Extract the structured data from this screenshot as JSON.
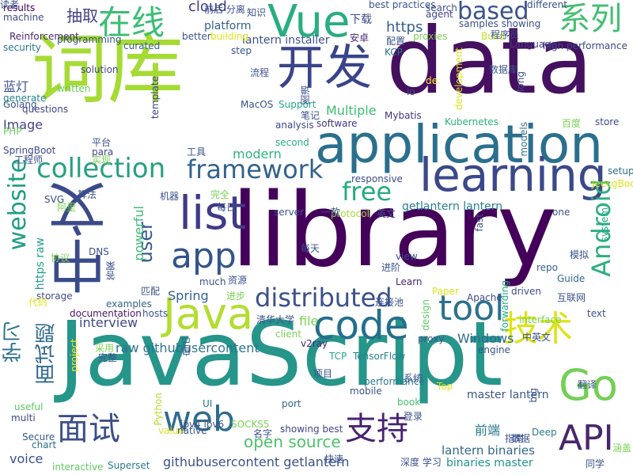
{
  "words": [
    {
      "text": "library",
      "color": "#44015a"
    },
    {
      "text": "data",
      "color": "#45105f"
    },
    {
      "text": "JavaScript",
      "color": "#26958a"
    },
    {
      "text": "词库",
      "color": "#a6db35"
    },
    {
      "text": "application",
      "color": "#2a6f8e"
    },
    {
      "text": "中文",
      "color": "#3b4b89"
    },
    {
      "text": "开发",
      "color": "#3a448a"
    },
    {
      "text": "learning",
      "color": "#3b4889"
    },
    {
      "text": "Vue",
      "color": "#28ae80"
    },
    {
      "text": "Java",
      "color": "#b3dd2f"
    },
    {
      "text": "list",
      "color": "#3f3a87"
    },
    {
      "text": "code",
      "color": "#236f8d"
    },
    {
      "text": "Go",
      "color": "#72d055"
    },
    {
      "text": "web",
      "color": "#2f6c8e"
    },
    {
      "text": "API",
      "color": "#48276d"
    },
    {
      "text": "技术",
      "color": "#dde318"
    },
    {
      "text": "app",
      "color": "#33548c"
    },
    {
      "text": "支持",
      "color": "#482374"
    },
    {
      "text": "面试",
      "color": "#3c4f8a"
    },
    {
      "text": "tool",
      "color": "#2c718e"
    },
    {
      "text": "在线",
      "color": "#3abe74"
    },
    {
      "text": "系列",
      "color": "#43bf71"
    },
    {
      "text": "collection",
      "color": "#27a082"
    },
    {
      "text": "framework",
      "color": "#33628d"
    },
    {
      "text": "distributed",
      "color": "#3b518b"
    },
    {
      "text": "website",
      "color": "#1f9d87"
    },
    {
      "text": "Android",
      "color": "#2ab07f"
    },
    {
      "text": "free",
      "color": "#25ab81"
    },
    {
      "text": "based",
      "color": "#3a528b"
    },
    {
      "text": "open source",
      "color": "#4cc26c"
    },
    {
      "text": "学习",
      "color": "#2c728e"
    },
    {
      "text": "面试题",
      "color": "#306a8e"
    },
    {
      "text": "user",
      "color": "#37598c"
    },
    {
      "text": "https",
      "color": "#345f8d"
    },
    {
      "text": "抽取",
      "color": "#424086"
    },
    {
      "text": "cloud",
      "color": "#433e85"
    },
    {
      "text": "下载",
      "color": "#3e4989"
    },
    {
      "text": "modern",
      "color": "#2fb47c"
    },
    {
      "text": "powerful",
      "color": "#3bbb75"
    },
    {
      "text": "interview",
      "color": "#3e4a89"
    },
    {
      "text": "getlantern lantern",
      "color": "#27808e"
    },
    {
      "text": "lantern binaries",
      "color": "#31678e"
    },
    {
      "text": "binaries master",
      "color": "#1f948c"
    },
    {
      "text": "githubusercontent getlantern",
      "color": "#3b528b"
    },
    {
      "text": "raw githubusercontent",
      "color": "#2b758e"
    },
    {
      "text": "master lantern",
      "color": "#39578c"
    },
    {
      "text": "Multiple",
      "color": "#3dbc74"
    },
    {
      "text": "前端",
      "color": "#2a788e"
    },
    {
      "text": "Image",
      "color": "#414487"
    },
    {
      "text": "蓝灯",
      "color": "#3b528b"
    },
    {
      "text": "Spring",
      "color": "#33628d"
    },
    {
      "text": "file",
      "color": "#7ad151"
    },
    {
      "text": "https raw",
      "color": "#1fa088"
    },
    {
      "text": "lantern installer",
      "color": "#3c508b"
    },
    {
      "text": "Windows",
      "color": "#2f6b8e"
    },
    {
      "text": "platform",
      "color": "#34608d"
    },
    {
      "text": "best practices",
      "color": "#39558c"
    },
    {
      "text": "samples showing",
      "color": "#3b528b"
    },
    {
      "text": "high performance",
      "color": "#3f4788"
    },
    {
      "text": "forwarding",
      "color": "#22a785"
    },
    {
      "text": "storage",
      "color": "#3e4a89"
    },
    {
      "text": "repo",
      "color": "#365c8d"
    },
    {
      "text": "text",
      "color": "#3c4f8a"
    },
    {
      "text": "examples",
      "color": "#33638d"
    },
    {
      "text": "documentation",
      "color": "#48186a"
    },
    {
      "text": "Support",
      "color": "#22a884"
    },
    {
      "text": "Mybatis",
      "color": "#46327e"
    },
    {
      "text": "software",
      "color": "#453781"
    },
    {
      "text": "Kubernetes",
      "color": "#2db27d"
    },
    {
      "text": "analysis",
      "color": "#3e4c8a"
    },
    {
      "text": "second",
      "color": "#27ad81"
    },
    {
      "text": "responsive",
      "color": "#3d4e8a"
    },
    {
      "text": "server",
      "color": "#3b528b"
    },
    {
      "text": "protocol",
      "color": "#a5db36"
    },
    {
      "text": "TensorFlow",
      "color": "#26828e"
    },
    {
      "text": "TCP",
      "color": "#22a884"
    },
    {
      "text": "v2ray",
      "color": "#482878"
    },
    {
      "text": "port",
      "color": "#31688e"
    },
    {
      "text": "mobile",
      "color": "#3b528b"
    },
    {
      "text": "book",
      "color": "#4ac16d"
    },
    {
      "text": "showing best",
      "color": "#414487"
    },
    {
      "text": "SOCKS5",
      "color": "#7ad151"
    },
    {
      "text": "ipv4 ipv6",
      "color": "#3b528b"
    },
    {
      "text": "UI",
      "color": "#2a788e"
    },
    {
      "text": "Python",
      "color": "#b5de2b"
    },
    {
      "text": "Superset",
      "color": "#2a788e"
    },
    {
      "text": "interactive",
      "color": "#5ec962"
    },
    {
      "text": "Secure",
      "color": "#39568c"
    },
    {
      "text": "chart",
      "color": "#2d708e"
    },
    {
      "text": "multi",
      "color": "#3f4889"
    },
    {
      "text": "useful",
      "color": "#5ec962"
    },
    {
      "text": "voice",
      "color": "#3b528b"
    },
    {
      "text": "project",
      "color": "#fde725"
    },
    {
      "text": "questions",
      "color": "#414487"
    },
    {
      "text": "PHP",
      "color": "#6ccd5a"
    },
    {
      "text": "Golang",
      "color": "#3b528b"
    },
    {
      "text": "generate",
      "color": "#25848e"
    },
    {
      "text": "SpringBoot",
      "color": "#3e4989"
    },
    {
      "text": "written",
      "color": "#6ccd5a"
    },
    {
      "text": "solution",
      "color": "#404688"
    },
    {
      "text": "curated",
      "color": "#365c8d"
    },
    {
      "text": "Reinforcement",
      "color": "#482878"
    },
    {
      "text": "security",
      "color": "#2a788e"
    },
    {
      "text": "results",
      "color": "#44015a"
    },
    {
      "text": "machine",
      "color": "#3e4a89"
    },
    {
      "text": "step",
      "color": "#39568c"
    },
    {
      "text": "Language",
      "color": "#453781"
    },
    {
      "text": "Build",
      "color": "#bddf26"
    },
    {
      "text": "models",
      "color": "#2c728e"
    },
    {
      "text": "driven",
      "color": "#3d4e8a"
    },
    {
      "text": "Guide",
      "color": "#2e6e8e"
    },
    {
      "text": "JeecgBoot",
      "color": "#dde318"
    },
    {
      "text": "setup",
      "color": "#2c728e"
    },
    {
      "text": "one",
      "color": "#3b528b"
    },
    {
      "text": "system",
      "color": "#22a884"
    },
    {
      "text": "store",
      "color": "#3e4c8a"
    },
    {
      "text": "different",
      "color": "#3b528b"
    },
    {
      "text": "search",
      "color": "#3b528b"
    },
    {
      "text": "agent",
      "color": "#414487"
    },
    {
      "text": "proxies",
      "color": "#7ad151"
    },
    {
      "text": "KCP",
      "color": "#2a788e"
    },
    {
      "text": "de",
      "color": "#fde725"
    },
    {
      "text": "io",
      "color": "#3e4a89"
    },
    {
      "text": "view",
      "color": "#3b528b"
    },
    {
      "text": "Learn",
      "color": "#482878"
    },
    {
      "text": "Paper",
      "color": "#dde318"
    },
    {
      "text": "Apache",
      "color": "#3e4a89"
    },
    {
      "text": "design",
      "color": "#5ec962"
    },
    {
      "text": "proxy",
      "color": "#3b528b"
    },
    {
      "text": "engine",
      "color": "#3b528b"
    },
    {
      "text": "performance",
      "color": "#2a788e"
    },
    {
      "text": "Top",
      "color": "#dde318"
    },
    {
      "text": "big",
      "color": "#3b528b"
    },
    {
      "text": "Deep",
      "color": "#2a788e"
    },
    {
      "text": "development",
      "color": "#dde318"
    },
    {
      "text": "long",
      "color": "#3b528b"
    },
    {
      "text": "interface",
      "color": "#7ad151"
    },
    {
      "text": "value",
      "color": "#dde318"
    },
    {
      "text": "native",
      "color": "#3b528b"
    },
    {
      "text": "building",
      "color": "#dde318"
    },
    {
      "text": "MacOS",
      "color": "#3b528b"
    },
    {
      "text": "template",
      "color": "#414487"
    },
    {
      "text": "better",
      "color": "#3b528b"
    },
    {
      "text": "para",
      "color": "#404688"
    },
    {
      "text": "fast",
      "color": "#3b528b"
    },
    {
      "text": "much",
      "color": "#3b528b"
    },
    {
      "text": "SVG",
      "color": "#3b528b"
    },
    {
      "text": "DNS",
      "color": "#3b528b"
    },
    {
      "text": "hosts",
      "color": "#3b528b"
    },
    {
      "text": "client",
      "color": "#7ad151"
    },
    {
      "text": "programming",
      "color": "#3b528b"
    },
    {
      "text": "前后 分离",
      "color": "#3b528b"
    },
    {
      "text": "知识",
      "color": "#3b528b"
    },
    {
      "text": "安卓",
      "color": "#482878"
    },
    {
      "text": "配置",
      "color": "#3b528b"
    },
    {
      "text": "程序员",
      "color": "#3b528b"
    },
    {
      "text": "数据库",
      "color": "#3b528b"
    },
    {
      "text": "百度",
      "color": "#7ad151"
    },
    {
      "text": "流程",
      "color": "#3b528b"
    },
    {
      "text": "图谱",
      "color": "#3b528b"
    },
    {
      "text": "笔记",
      "color": "#3b528b"
    },
    {
      "text": "平台",
      "color": "#3b528b"
    },
    {
      "text": "实现",
      "color": "#7ad151"
    },
    {
      "text": "工具",
      "color": "#3b528b"
    },
    {
      "text": "工程师",
      "color": "#3b528b"
    },
    {
      "text": "算法",
      "color": "#3b528b"
    },
    {
      "text": "阿里",
      "color": "#7ad151"
    },
    {
      "text": "机器",
      "color": "#3b528b"
    },
    {
      "text": "完全",
      "color": "#7ad151"
    },
    {
      "text": "每日",
      "color": "#3b528b"
    },
    {
      "text": "一款",
      "color": "#3b528b"
    },
    {
      "text": "英文",
      "color": "#3b528b"
    },
    {
      "text": "每天",
      "color": "#3b528b"
    },
    {
      "text": "模拟",
      "color": "#3b528b"
    },
    {
      "text": "进阶",
      "color": "#3b528b"
    },
    {
      "text": "协议",
      "color": "#7ad151"
    },
    {
      "text": "答案",
      "color": "#3b528b"
    },
    {
      "text": "资源",
      "color": "#3b528b"
    },
    {
      "text": "进步",
      "color": "#7ad151"
    },
    {
      "text": "匹配",
      "color": "#3b528b"
    },
    {
      "text": "代码",
      "color": "#dde318"
    },
    {
      "text": "连接池",
      "color": "#3b528b"
    },
    {
      "text": "互联网",
      "color": "#3b528b"
    },
    {
      "text": "清华大学",
      "color": "#3b528b"
    },
    {
      "text": "中英文",
      "color": "#3b528b"
    },
    {
      "text": "完整",
      "color": "#3b528b"
    },
    {
      "text": "采用",
      "color": "#7ad151"
    },
    {
      "text": "自己",
      "color": "#3b528b"
    },
    {
      "text": "项目",
      "color": "#3b528b"
    },
    {
      "text": "系统",
      "color": "#3b528b"
    },
    {
      "text": "登录",
      "color": "#3b528b"
    },
    {
      "text": "翻译",
      "color": "#3b528b"
    },
    {
      "text": "名字",
      "color": "#3b528b"
    },
    {
      "text": "指南",
      "color": "#3b528b"
    },
    {
      "text": "数据",
      "color": "#3b528b"
    },
    {
      "text": "涵盖",
      "color": "#7ad151"
    },
    {
      "text": "同学",
      "color": "#3b528b"
    },
    {
      "text": "深度 学习",
      "color": "#3b528b"
    },
    {
      "text": "快速",
      "color": "#3b528b"
    },
    {
      "text": "读者",
      "color": "#3b528b"
    }
  ]
}
